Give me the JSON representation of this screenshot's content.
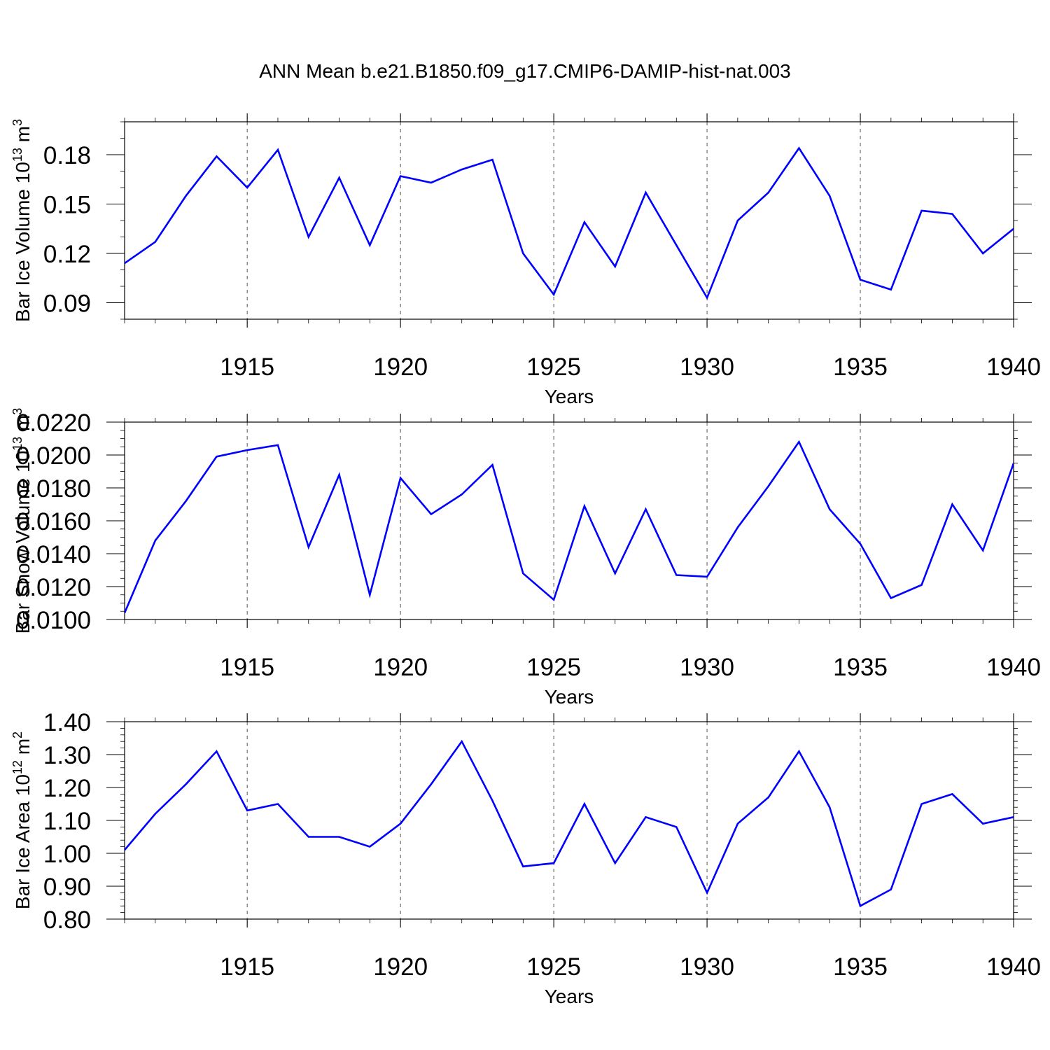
{
  "title": "ANN Mean b.e21.B1850.f09_g17.CMIP6-DAMIP-hist-nat.003",
  "colors": {
    "line": "#0000ff",
    "axis": "#000000",
    "grid": "#555555"
  },
  "chart_data": [
    {
      "type": "line",
      "ylabel": "Bar Ice Volume 10",
      "ylabel_exp": "13",
      "ylabel_unit": " m",
      "ylabel_unit_exp": "3",
      "xlabel": "Years",
      "xlim": [
        1911,
        1940
      ],
      "ylim": [
        0.08,
        0.2
      ],
      "xticks": [
        1915,
        1920,
        1925,
        1930,
        1935,
        1940
      ],
      "yticks": [
        0.09,
        0.12,
        0.15,
        0.18
      ],
      "ytick_labels": [
        "0.09",
        "0.12",
        "0.15",
        "0.18"
      ],
      "y_minor_step": 0.01,
      "grid": "x-dashed",
      "x": [
        1911,
        1912,
        1913,
        1914,
        1915,
        1916,
        1917,
        1918,
        1919,
        1920,
        1921,
        1922,
        1923,
        1924,
        1925,
        1926,
        1927,
        1928,
        1929,
        1930,
        1931,
        1932,
        1933,
        1934,
        1935,
        1936,
        1937,
        1938,
        1939,
        1940
      ],
      "series": [
        {
          "values": [
            0.114,
            0.127,
            0.155,
            0.179,
            0.16,
            0.183,
            0.13,
            0.166,
            0.125,
            0.167,
            0.163,
            0.171,
            0.177,
            0.12,
            0.095,
            0.139,
            0.112,
            0.157,
            0.125,
            0.093,
            0.14,
            0.157,
            0.184,
            0.155,
            0.104,
            0.098,
            0.146,
            0.144,
            0.12,
            0.135
          ]
        }
      ]
    },
    {
      "type": "line",
      "ylabel": "Bar Snow Volume 10",
      "ylabel_exp": "13",
      "ylabel_unit": " m",
      "ylabel_unit_exp": "3",
      "xlabel": "Years",
      "xlim": [
        1911,
        1940
      ],
      "ylim": [
        0.01,
        0.022
      ],
      "xticks": [
        1915,
        1920,
        1925,
        1930,
        1935,
        1940
      ],
      "yticks": [
        0.01,
        0.012,
        0.014,
        0.016,
        0.018,
        0.02,
        0.022
      ],
      "ytick_labels": [
        "0.0100",
        "0.0120",
        "0.0140",
        "0.0160",
        "0.0180",
        "0.0200",
        "0.0220"
      ],
      "y_minor_step": 0.0005,
      "grid": "x-dashed",
      "x": [
        1911,
        1912,
        1913,
        1914,
        1915,
        1916,
        1917,
        1918,
        1919,
        1920,
        1921,
        1922,
        1923,
        1924,
        1925,
        1926,
        1927,
        1928,
        1929,
        1930,
        1931,
        1932,
        1933,
        1934,
        1935,
        1936,
        1937,
        1938,
        1939,
        1940
      ],
      "series": [
        {
          "values": [
            0.0104,
            0.0148,
            0.0172,
            0.0199,
            0.0203,
            0.0206,
            0.0144,
            0.0188,
            0.0115,
            0.0186,
            0.0164,
            0.0176,
            0.0194,
            0.0128,
            0.0112,
            0.0169,
            0.0128,
            0.0167,
            0.0127,
            0.0126,
            0.0156,
            0.0181,
            0.0208,
            0.0167,
            0.0146,
            0.0113,
            0.0121,
            0.017,
            0.0142,
            0.0195
          ]
        }
      ]
    },
    {
      "type": "line",
      "ylabel": "Bar Ice Area 10",
      "ylabel_exp": "12",
      "ylabel_unit": " m",
      "ylabel_unit_exp": "2",
      "xlabel": "Years",
      "xlim": [
        1911,
        1940
      ],
      "ylim": [
        0.8,
        1.4
      ],
      "xticks": [
        1915,
        1920,
        1925,
        1930,
        1935,
        1940
      ],
      "yticks": [
        0.8,
        0.9,
        1.0,
        1.1,
        1.2,
        1.3,
        1.4
      ],
      "ytick_labels": [
        "0.80",
        "0.90",
        "1.00",
        "1.10",
        "1.20",
        "1.30",
        "1.40"
      ],
      "y_minor_step": 0.02,
      "grid": "x-dashed",
      "x": [
        1911,
        1912,
        1913,
        1914,
        1915,
        1916,
        1917,
        1918,
        1919,
        1920,
        1921,
        1922,
        1923,
        1924,
        1925,
        1926,
        1927,
        1928,
        1929,
        1930,
        1931,
        1932,
        1933,
        1934,
        1935,
        1936,
        1937,
        1938,
        1939,
        1940
      ],
      "series": [
        {
          "values": [
            1.01,
            1.12,
            1.21,
            1.31,
            1.13,
            1.15,
            1.05,
            1.05,
            1.02,
            1.09,
            1.21,
            1.34,
            1.16,
            0.96,
            0.97,
            1.15,
            0.97,
            1.11,
            1.08,
            0.88,
            1.09,
            1.17,
            1.31,
            1.14,
            0.84,
            0.89,
            1.15,
            1.18,
            1.09,
            1.11
          ]
        }
      ]
    }
  ]
}
